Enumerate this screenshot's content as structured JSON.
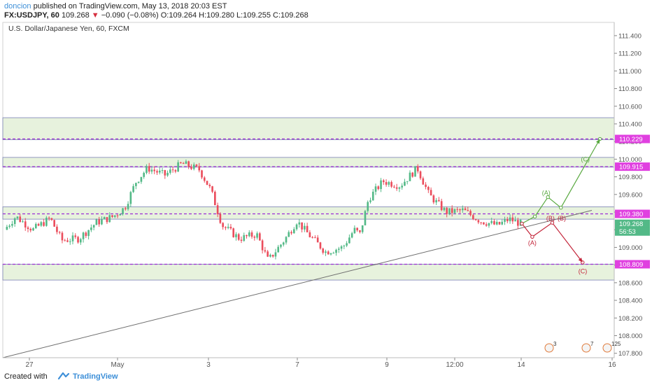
{
  "header": {
    "user": "doncion",
    "published_text": "published on TradingView.com, May 13, 2018 20:03 EST",
    "symbol_text": "FX:USDJPY, 60",
    "price": "109.268",
    "change_icon": "down-triangle-icon",
    "change": "−0.090 (−0.08%)",
    "ohlc": {
      "o": "O:109.264",
      "h": "H:109.280",
      "l": "L:109.255",
      "c": "C:109.268"
    }
  },
  "chart_title": "U.S. Dollar/Japanese Yen, 60, FXCM",
  "footer": {
    "created_with": "Created with",
    "logo_icon": "tradingview-cloud-icon",
    "brand": "TradingView"
  },
  "colors": {
    "up": "#53b987",
    "down": "#eb4d5c",
    "zone_fill": "#e7f2dd",
    "zone_border": "#7b80b5",
    "level_line": "#9b2ed4",
    "level_label": "#e040e0",
    "bull_path": "#58a83f",
    "bear_path": "#c3253a",
    "trendline": "#6e6e6e"
  },
  "chart_data": {
    "type": "candlestick",
    "title": "U.S. Dollar/Japanese Yen, 60, FXCM",
    "x_ticks": [
      "27",
      "May",
      "3",
      "7",
      "9",
      "12:00",
      "14",
      "16"
    ],
    "y_ticks": [
      "111.400",
      "111.200",
      "111.000",
      "110.800",
      "110.600",
      "110.400",
      "110.200",
      "110.000",
      "109.800",
      "109.600",
      "109.400",
      "109.200",
      "109.000",
      "108.800",
      "108.600",
      "108.400",
      "108.200",
      "108.000",
      "107.800"
    ],
    "ylim": [
      107.75,
      111.55
    ],
    "price_labels": [
      {
        "text": "110.229",
        "value": 110.229
      },
      {
        "text": "109.915",
        "value": 109.915
      },
      {
        "text": "109.380",
        "value": 109.38
      },
      {
        "text": "109.268",
        "value": 109.268
      },
      {
        "text": "56:53",
        "value": 109.18
      },
      {
        "text": "108.809",
        "value": 108.809
      }
    ],
    "zones": [
      {
        "from": 110.22,
        "to": 110.47
      },
      {
        "from": 109.91,
        "to": 110.02
      },
      {
        "from": 109.32,
        "to": 109.46
      },
      {
        "from": 108.63,
        "to": 108.81
      }
    ],
    "levels": [
      110.229,
      109.915,
      109.38,
      108.809
    ],
    "price_path": [
      {
        "x": 0,
        "p": 109.2
      },
      {
        "x": 0.02,
        "p": 109.35
      },
      {
        "x": 0.05,
        "p": 109.2
      },
      {
        "x": 0.08,
        "p": 109.33
      },
      {
        "x": 0.1,
        "p": 109.08
      },
      {
        "x": 0.13,
        "p": 109.1
      },
      {
        "x": 0.16,
        "p": 109.28
      },
      {
        "x": 0.19,
        "p": 109.35
      },
      {
        "x": 0.21,
        "p": 109.45
      },
      {
        "x": 0.23,
        "p": 109.75
      },
      {
        "x": 0.25,
        "p": 109.9
      },
      {
        "x": 0.28,
        "p": 109.82
      },
      {
        "x": 0.31,
        "p": 109.95
      },
      {
        "x": 0.34,
        "p": 109.88
      },
      {
        "x": 0.36,
        "p": 109.65
      },
      {
        "x": 0.38,
        "p": 109.25
      },
      {
        "x": 0.41,
        "p": 109.1
      },
      {
        "x": 0.44,
        "p": 109.15
      },
      {
        "x": 0.46,
        "p": 108.85
      },
      {
        "x": 0.49,
        "p": 109.1
      },
      {
        "x": 0.51,
        "p": 109.3
      },
      {
        "x": 0.53,
        "p": 109.15
      },
      {
        "x": 0.56,
        "p": 108.95
      },
      {
        "x": 0.59,
        "p": 109.0
      },
      {
        "x": 0.61,
        "p": 109.2
      },
      {
        "x": 0.62,
        "p": 109.15
      },
      {
        "x": 0.635,
        "p": 109.55
      },
      {
        "x": 0.66,
        "p": 109.75
      },
      {
        "x": 0.69,
        "p": 109.7
      },
      {
        "x": 0.72,
        "p": 109.9
      },
      {
        "x": 0.74,
        "p": 109.6
      },
      {
        "x": 0.77,
        "p": 109.4
      },
      {
        "x": 0.8,
        "p": 109.42
      },
      {
        "x": 0.83,
        "p": 109.3
      },
      {
        "x": 0.86,
        "p": 109.25
      },
      {
        "x": 0.88,
        "p": 109.32
      },
      {
        "x": 0.9,
        "p": 109.27
      }
    ],
    "trendline": {
      "from": {
        "x": 0,
        "p": 107.75
      },
      "to": {
        "x": 1,
        "p": 109.42
      }
    },
    "projection": {
      "bull": [
        {
          "x": 0,
          "p": 109.27
        },
        {
          "x": 0.15,
          "p": 109.35
        },
        {
          "x": 0.3,
          "p": 109.57
        },
        {
          "x": 0.45,
          "p": 109.45
        },
        {
          "x": 0.9,
          "p": 110.229
        }
      ],
      "bear": [
        {
          "x": 0,
          "p": 109.27
        },
        {
          "x": 0.12,
          "p": 109.12
        },
        {
          "x": 0.35,
          "p": 109.28
        },
        {
          "x": 0.7,
          "p": 108.83
        }
      ],
      "labels": [
        {
          "text": "(A)",
          "series": "bull",
          "x": 0.28,
          "p": 109.62
        },
        {
          "text": "(C)",
          "series": "bull",
          "x": 0.73,
          "p": 110.0
        },
        {
          "text": "(A)",
          "series": "bear",
          "x": 0.12,
          "p": 109.05
        },
        {
          "text": "(B)",
          "series": "bear",
          "x": 0.33,
          "p": 109.33
        },
        {
          "text": "(B)",
          "series": "bear",
          "x": 0.46,
          "p": 109.33
        },
        {
          "text": "(C)",
          "series": "bear",
          "x": 0.7,
          "p": 108.73
        }
      ]
    },
    "events": [
      {
        "text": "3"
      },
      {
        "text": "7"
      },
      {
        "text": "125"
      }
    ]
  }
}
